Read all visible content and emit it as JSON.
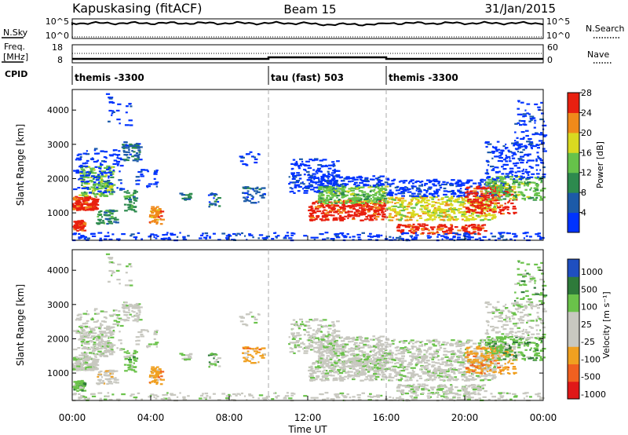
{
  "header": {
    "station": "Kapuskasing (fitACF)",
    "beam": "Beam 15",
    "date": "31/Jan/2015"
  },
  "nsky_panel": {
    "label": "N.Sky",
    "right_label": "N.Search",
    "left_ticks": [
      "10^5",
      "10^0"
    ],
    "right_ticks": [
      "10^5",
      "10^0"
    ]
  },
  "freq_panel": {
    "label_line1": "Freq.",
    "label_line2": "[MHz]",
    "right_label": "Nave",
    "left_ticks": [
      "18",
      "8"
    ],
    "right_ticks": [
      "60",
      "0"
    ]
  },
  "cpid_panel": {
    "label": "CPID",
    "segments": [
      {
        "label": "themis -3300",
        "start_hour": 0,
        "end_hour": 10
      },
      {
        "label": "tau (fast) 503",
        "start_hour": 10,
        "end_hour": 16
      },
      {
        "label": "themis -3300",
        "start_hour": 16,
        "end_hour": 24
      }
    ]
  },
  "chart_data": [
    {
      "type": "heatmap",
      "name": "power",
      "ylabel": "Slant Range [km]",
      "yticks": [
        "1000",
        "2000",
        "3000",
        "4000"
      ],
      "ylim": [
        200,
        4600
      ],
      "colorbar_label": "Power [dB]",
      "colorbar_ticks": [
        "4",
        "8",
        "12",
        "16",
        "20",
        "24",
        "28"
      ],
      "colors": [
        "#0033ff",
        "#1c5aa8",
        "#2d8a4e",
        "#66c24a",
        "#d9d920",
        "#f08a1a",
        "#e82010"
      ]
    },
    {
      "type": "heatmap",
      "name": "velocity",
      "ylabel": "Slant Range [km]",
      "yticks": [
        "1000",
        "2000",
        "3000",
        "4000"
      ],
      "ylim": [
        200,
        4600
      ],
      "colorbar_label": "Velocity [m s⁻¹]",
      "colorbar_ticks": [
        "1000",
        "500",
        "100",
        "25",
        "-25",
        "-100",
        "-500",
        "-1000"
      ],
      "colors": [
        "#1f4fc0",
        "#2e7a3a",
        "#6ac24a",
        "#c8c8c0",
        "#c8c8c0",
        "#f0a020",
        "#f06020",
        "#e01818"
      ]
    }
  ],
  "x_axis": {
    "label": "Time UT",
    "ticks": [
      "00:00",
      "04:00",
      "08:00",
      "12:00",
      "16:00",
      "20:00",
      "00:00"
    ],
    "range_hours": [
      0,
      24
    ]
  }
}
